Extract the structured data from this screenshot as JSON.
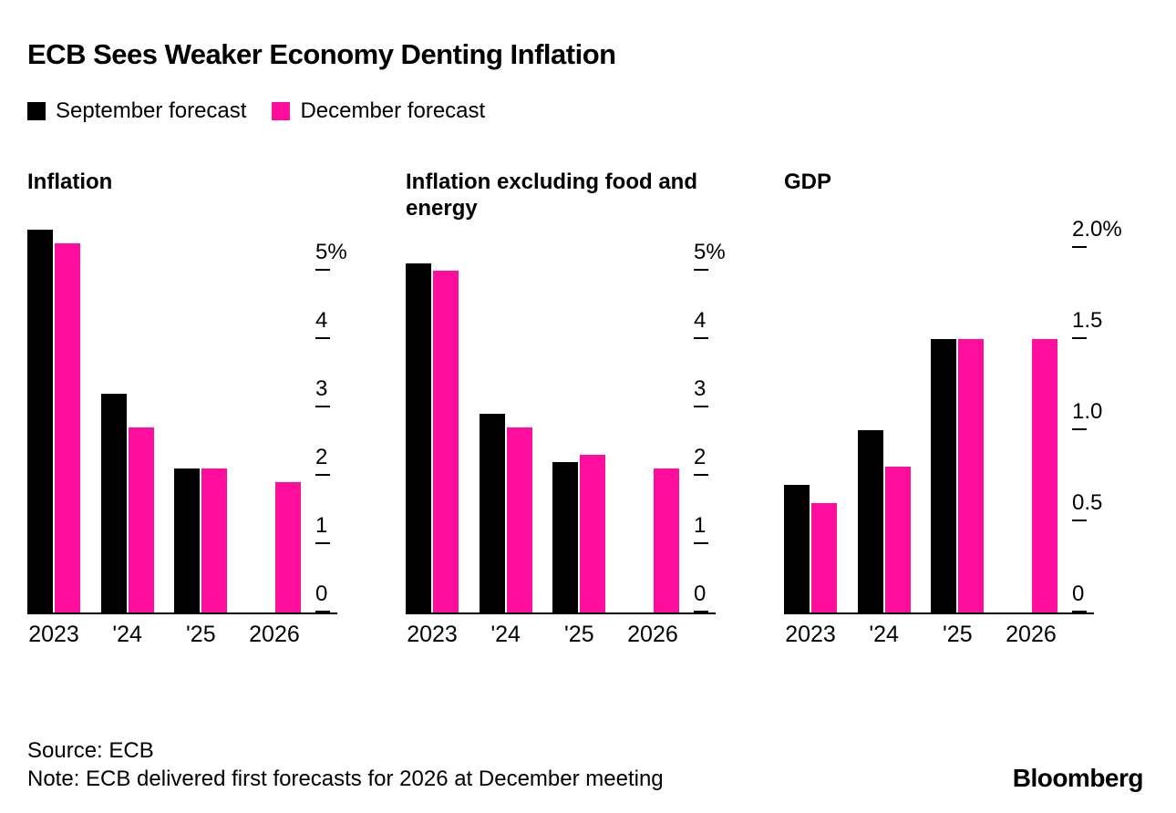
{
  "header": {
    "title": "ECB Sees Weaker Economy Denting Inflation"
  },
  "colors": {
    "september": "#000000",
    "december": "#FF0D9C"
  },
  "legend": [
    {
      "label": "September forecast",
      "color": "#000000"
    },
    {
      "label": "December forecast",
      "color": "#FF0D9C"
    }
  ],
  "chart_data": [
    {
      "type": "bar",
      "title": "Inflation",
      "categories": [
        "2023",
        "'24",
        "'25",
        "2026"
      ],
      "series": [
        {
          "name": "September forecast",
          "color": "#000000",
          "values": [
            5.6,
            3.2,
            2.1,
            null
          ]
        },
        {
          "name": "December forecast",
          "color": "#FF0D9C",
          "values": [
            5.4,
            2.7,
            2.1,
            1.9
          ]
        }
      ],
      "ylabel": "%",
      "ylim": [
        0,
        5.6
      ],
      "yticks": [
        {
          "value": 5,
          "label": "5%"
        },
        {
          "value": 4,
          "label": "4"
        },
        {
          "value": 3,
          "label": "3"
        },
        {
          "value": 2,
          "label": "2"
        },
        {
          "value": 1,
          "label": "1"
        },
        {
          "value": 0,
          "label": "0"
        }
      ],
      "legend_position": "top",
      "grid": false
    },
    {
      "type": "bar",
      "title": "Inflation excluding food and energy",
      "categories": [
        "2023",
        "'24",
        "'25",
        "2026"
      ],
      "series": [
        {
          "name": "September forecast",
          "color": "#000000",
          "values": [
            5.1,
            2.9,
            2.2,
            null
          ]
        },
        {
          "name": "December forecast",
          "color": "#FF0D9C",
          "values": [
            5.0,
            2.7,
            2.3,
            2.1
          ]
        }
      ],
      "ylabel": "%",
      "ylim": [
        0,
        5.6
      ],
      "yticks": [
        {
          "value": 5,
          "label": "5%"
        },
        {
          "value": 4,
          "label": "4"
        },
        {
          "value": 3,
          "label": "3"
        },
        {
          "value": 2,
          "label": "2"
        },
        {
          "value": 1,
          "label": "1"
        },
        {
          "value": 0,
          "label": "0"
        }
      ],
      "legend_position": "top",
      "grid": false
    },
    {
      "type": "bar",
      "title": "GDP",
      "categories": [
        "2023",
        "'24",
        "'25",
        "2026"
      ],
      "series": [
        {
          "name": "September forecast",
          "color": "#000000",
          "values": [
            0.7,
            1.0,
            1.5,
            null
          ]
        },
        {
          "name": "December forecast",
          "color": "#FF0D9C",
          "values": [
            0.6,
            0.8,
            1.5,
            1.5
          ]
        }
      ],
      "ylabel": "%",
      "ylim": [
        0,
        2.1
      ],
      "yticks": [
        {
          "value": 2.0,
          "label": "2.0%"
        },
        {
          "value": 1.5,
          "label": "1.5"
        },
        {
          "value": 1.0,
          "label": "1.0"
        },
        {
          "value": 0.5,
          "label": "0.5"
        },
        {
          "value": 0,
          "label": "0"
        }
      ],
      "legend_position": "top",
      "grid": false
    }
  ],
  "footer": {
    "source": "Source: ECB",
    "note": "Note: ECB delivered first forecasts for 2026 at December meeting",
    "brand": "Bloomberg"
  }
}
